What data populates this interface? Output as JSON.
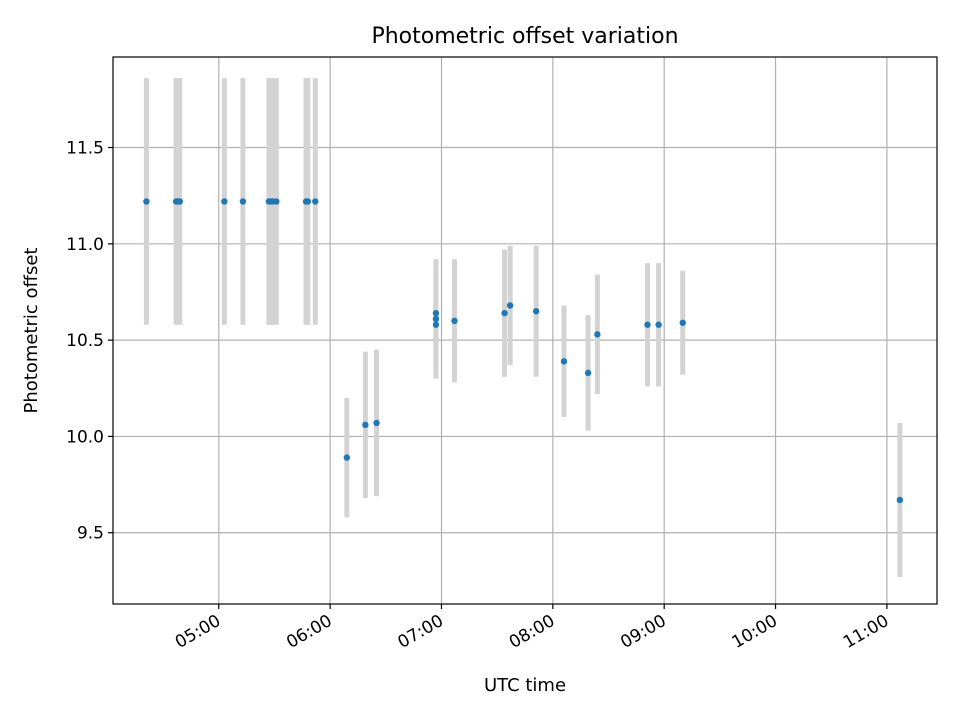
{
  "chart_data": {
    "type": "scatter",
    "title": "Photometric offset variation",
    "xlabel": "UTC time",
    "ylabel": "Photometric offset",
    "x_tick_labels": [
      "05:00",
      "06:00",
      "07:00",
      "08:00",
      "09:00",
      "10:00",
      "11:00"
    ],
    "x_ticks_hours": [
      5,
      6,
      7,
      8,
      9,
      10,
      11
    ],
    "xlim_hours": [
      4.05,
      11.45
    ],
    "y_ticks": [
      9.5,
      10.0,
      10.5,
      11.0,
      11.5
    ],
    "ylim": [
      9.13,
      11.97
    ],
    "grid": true,
    "colors": {
      "points": "#1f77b4",
      "errorbars": "#d3d3d3",
      "grid": "#b0b0b0"
    },
    "points": [
      {
        "t": "04:21",
        "y": 11.22,
        "err": 0.64
      },
      {
        "t": "04:37",
        "y": 11.22,
        "err": 0.64
      },
      {
        "t": "04:38",
        "y": 11.22,
        "err": 0.64
      },
      {
        "t": "04:39",
        "y": 11.22,
        "err": 0.64
      },
      {
        "t": "05:03",
        "y": 11.22,
        "err": 0.64
      },
      {
        "t": "05:13",
        "y": 11.22,
        "err": 0.64
      },
      {
        "t": "05:27",
        "y": 11.22,
        "err": 0.64
      },
      {
        "t": "05:28",
        "y": 11.22,
        "err": 0.64
      },
      {
        "t": "05:29",
        "y": 11.22,
        "err": 0.64
      },
      {
        "t": "05:31",
        "y": 11.22,
        "err": 0.64
      },
      {
        "t": "05:47",
        "y": 11.22,
        "err": 0.64
      },
      {
        "t": "05:48",
        "y": 11.22,
        "err": 0.64
      },
      {
        "t": "05:52",
        "y": 11.22,
        "err": 0.64
      },
      {
        "t": "06:09",
        "y": 9.89,
        "err": 0.31
      },
      {
        "t": "06:19",
        "y": 10.06,
        "err": 0.38
      },
      {
        "t": "06:25",
        "y": 10.07,
        "err": 0.38
      },
      {
        "t": "06:57",
        "y": 10.64,
        "err": 0.28
      },
      {
        "t": "06:57",
        "y": 10.61,
        "err": 0.31
      },
      {
        "t": "06:57",
        "y": 10.58,
        "err": 0.26
      },
      {
        "t": "07:07",
        "y": 10.6,
        "err": 0.32
      },
      {
        "t": "07:34",
        "y": 10.64,
        "err": 0.33
      },
      {
        "t": "07:37",
        "y": 10.68,
        "err": 0.31
      },
      {
        "t": "07:51",
        "y": 10.65,
        "err": 0.34
      },
      {
        "t": "08:06",
        "y": 10.39,
        "err": 0.29
      },
      {
        "t": "08:19",
        "y": 10.33,
        "err": 0.3
      },
      {
        "t": "08:24",
        "y": 10.53,
        "err": 0.31
      },
      {
        "t": "08:51",
        "y": 10.58,
        "err": 0.32
      },
      {
        "t": "08:57",
        "y": 10.58,
        "err": 0.32
      },
      {
        "t": "09:10",
        "y": 10.59,
        "err": 0.27
      },
      {
        "t": "11:07",
        "y": 9.67,
        "err": 0.4
      }
    ]
  }
}
